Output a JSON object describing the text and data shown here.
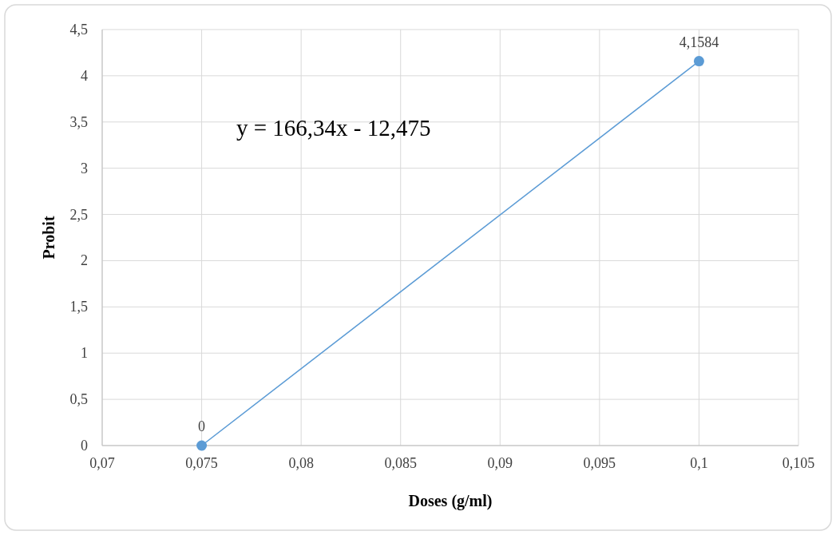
{
  "chart_data": {
    "type": "line",
    "xlabel": "Doses (g/ml)",
    "ylabel": "Probit",
    "x": [
      0.075,
      0.1
    ],
    "series": [
      {
        "color": "#5b9bd5",
        "values": [
          0,
          4.1584
        ],
        "value_labels": [
          "0",
          "4,1584"
        ]
      }
    ],
    "xlim": [
      0.07,
      0.105
    ],
    "xticks": [
      {
        "value": 0.07,
        "label": "0,07"
      },
      {
        "value": 0.075,
        "label": "0,075"
      },
      {
        "value": 0.08,
        "label": "0,08"
      },
      {
        "value": 0.085,
        "label": "0,085"
      },
      {
        "value": 0.09,
        "label": "0,09"
      },
      {
        "value": 0.095,
        "label": "0,095"
      },
      {
        "value": 0.1,
        "label": "0,1"
      },
      {
        "value": 0.105,
        "label": "0,105"
      }
    ],
    "ylim": [
      0,
      4.5
    ],
    "yticks": [
      0,
      {
        "value": 0.5,
        "label": "0,5"
      },
      1,
      {
        "value": 1.5,
        "label": "1,5"
      },
      2,
      {
        "value": 2.5,
        "label": "2,5"
      },
      3,
      {
        "value": 3.5,
        "label": "3,5"
      },
      4,
      {
        "value": 4.5,
        "label": "4,5"
      }
    ],
    "annotations": [
      "y = 166,34x - 12,475"
    ],
    "grid": true,
    "marker": "circle",
    "line_style": "solid"
  }
}
